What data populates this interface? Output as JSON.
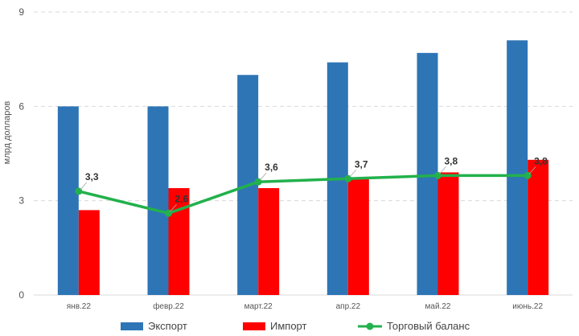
{
  "chart_data": {
    "type": "bar",
    "categories": [
      "янв.22",
      "февр.22",
      "март.22",
      "апр.22",
      "май.22",
      "июнь.22"
    ],
    "series": [
      {
        "name": "Экспорт",
        "type": "bar",
        "color": "#2e75b6",
        "values": [
          6.0,
          6.0,
          7.0,
          7.4,
          7.7,
          8.1
        ]
      },
      {
        "name": "Импорт",
        "type": "bar",
        "color": "#ff0000",
        "values": [
          2.7,
          3.4,
          3.4,
          3.7,
          3.9,
          4.3
        ]
      },
      {
        "name": "Торговый баланс",
        "type": "line",
        "color": "#22b14c",
        "values": [
          3.3,
          2.6,
          3.6,
          3.7,
          3.8,
          3.8
        ],
        "labels": [
          "3,3",
          "2,6",
          "3,6",
          "3,7",
          "3,8",
          "3,8"
        ]
      }
    ],
    "ylabel": "млрд долларов",
    "xlabel": "",
    "ylim": [
      0,
      9
    ],
    "yticks": [
      "0",
      "3",
      "6",
      "9"
    ],
    "grid": true,
    "legend": "bottom"
  }
}
